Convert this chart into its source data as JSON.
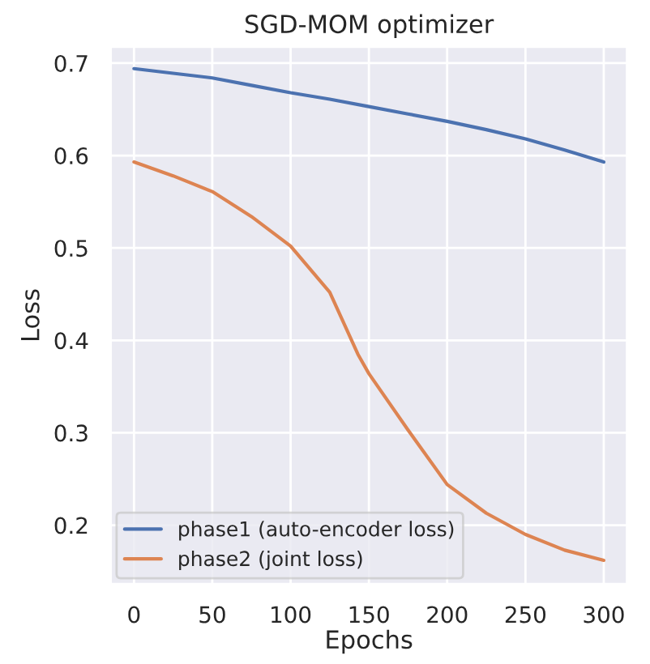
{
  "chart_data": {
    "type": "line",
    "title": "SGD-MOM optimizer",
    "xlabel": "Epochs",
    "ylabel": "Loss",
    "series": [
      {
        "name": "phase1 (auto-encoder loss)",
        "color": "#4c72b0",
        "x": [
          0,
          25,
          50,
          75,
          100,
          125,
          150,
          175,
          200,
          225,
          250,
          275,
          300
        ],
        "values": [
          0.694,
          0.689,
          0.684,
          0.676,
          0.668,
          0.661,
          0.653,
          0.645,
          0.637,
          0.628,
          0.618,
          0.606,
          0.593
        ]
      },
      {
        "name": "phase2 (joint loss)",
        "color": "#dd8452",
        "x": [
          0,
          25,
          50,
          75,
          100,
          125,
          143,
          150,
          175,
          200,
          225,
          250,
          275,
          300
        ],
        "values": [
          0.593,
          0.578,
          0.561,
          0.534,
          0.502,
          0.452,
          0.385,
          0.364,
          0.303,
          0.244,
          0.213,
          0.19,
          0.173,
          0.162
        ]
      }
    ],
    "xlim": [
      -15,
      315
    ],
    "ylim": [
      0.136,
      0.718
    ],
    "xticks": [
      0,
      50,
      100,
      150,
      200,
      250,
      300
    ],
    "yticks": [
      0.2,
      0.3,
      0.4,
      0.5,
      0.6,
      0.7
    ],
    "grid": true,
    "legend": "bottom left"
  }
}
